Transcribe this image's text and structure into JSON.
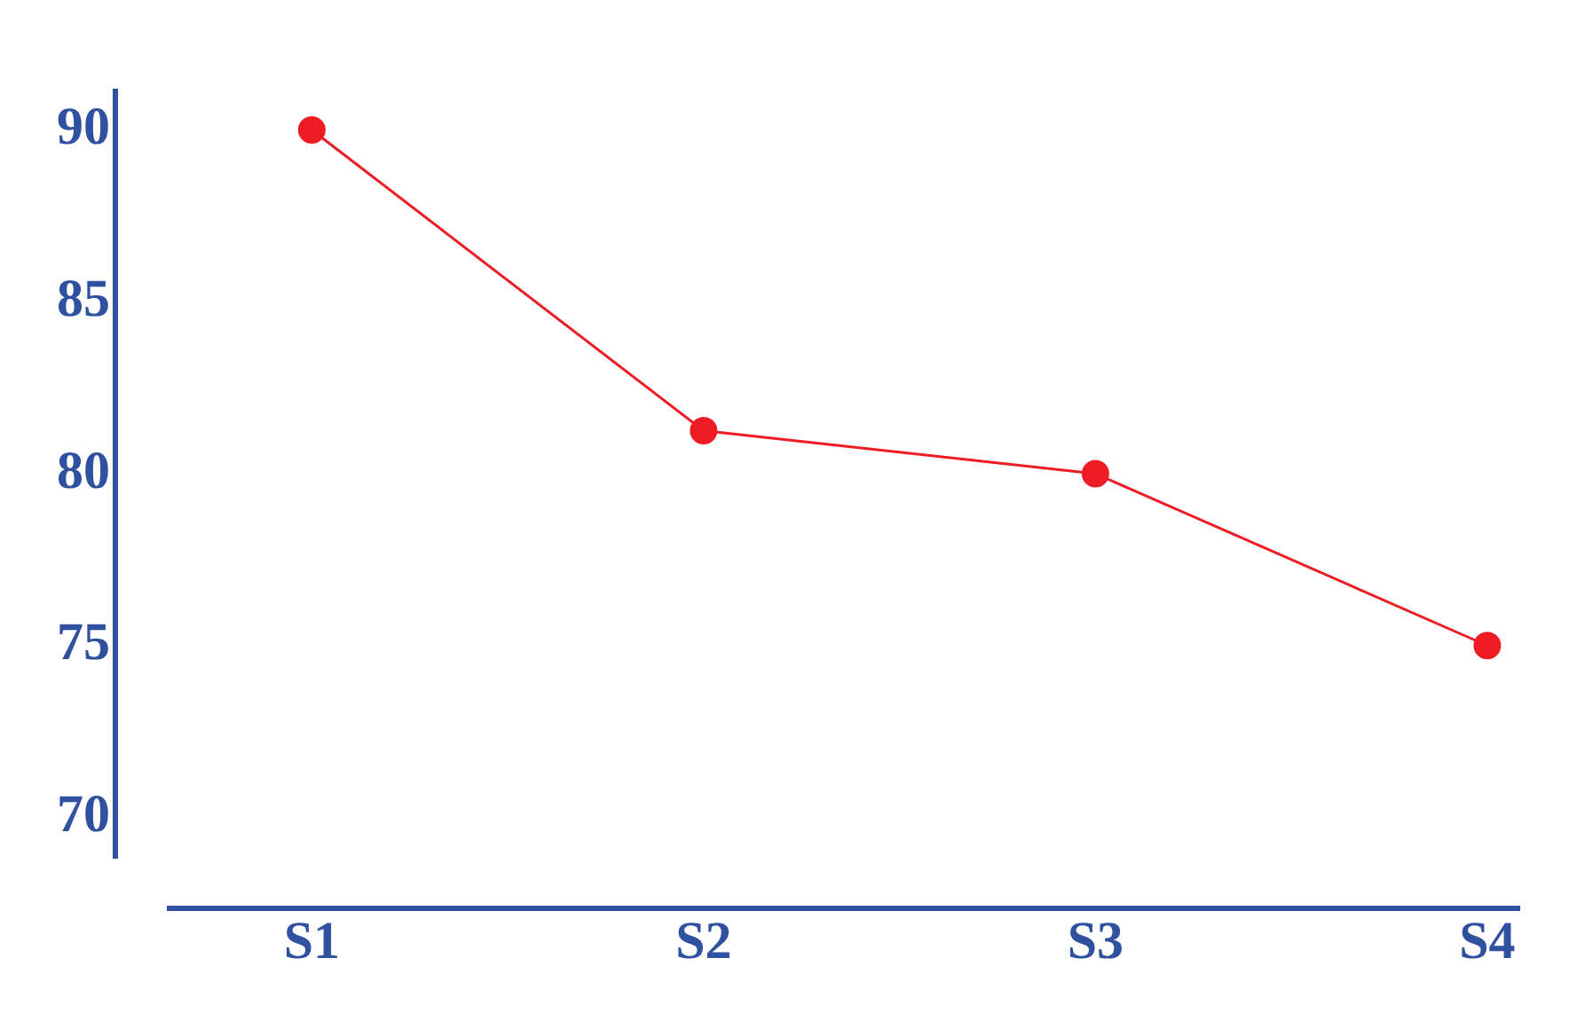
{
  "chart_data": {
    "type": "line",
    "categories": [
      "S1",
      "S2",
      "S3",
      "S4"
    ],
    "series": [
      {
        "color": "#ee1c24",
        "values": [
          90,
          81.25,
          80,
          75
        ]
      }
    ],
    "ylim": [
      68.8,
      91.2
    ],
    "yticks": [
      70,
      75,
      80,
      85,
      90
    ],
    "grid": false,
    "legend": false,
    "marker": "circle",
    "line_style": "solid"
  }
}
